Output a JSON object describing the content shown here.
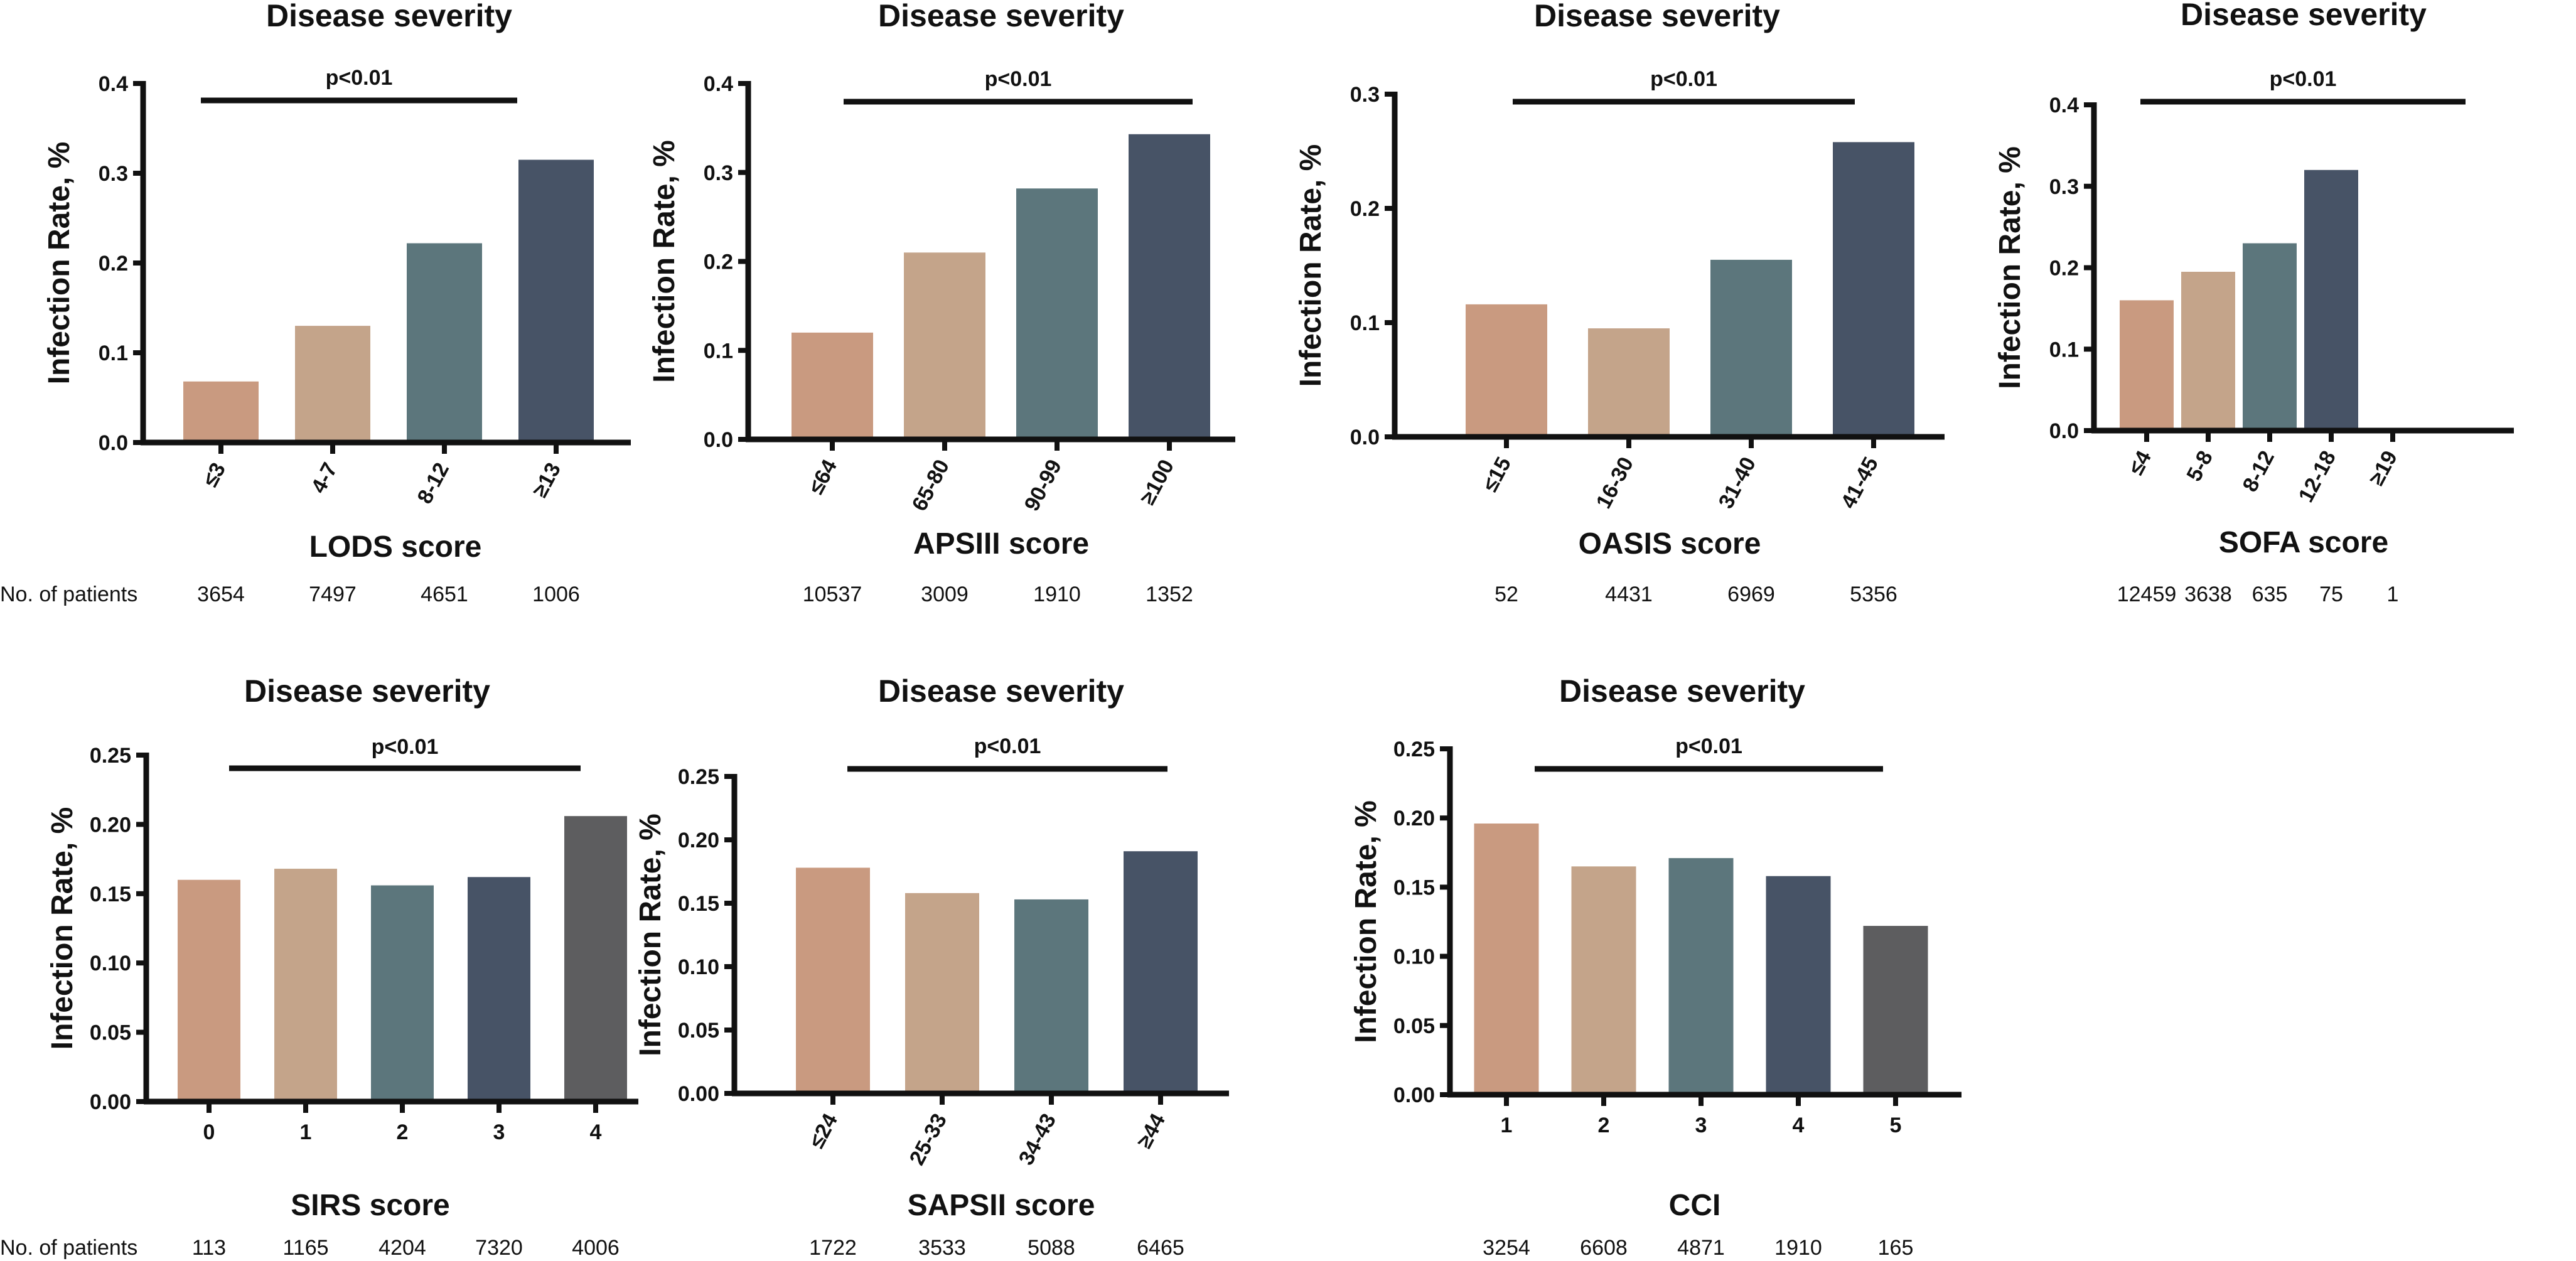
{
  "row_label": "No. of patients",
  "colors": {
    "c1": "#c99a80",
    "c2": "#c4a48a",
    "c3": "#5c767c",
    "c4": "#475366",
    "c5": "#5d5d5f"
  },
  "chart_data": [
    {
      "type": "bar",
      "title": "Disease severity",
      "xlabel": "LODS score",
      "ylabel": "Infection Rate, %",
      "categories": [
        "≤3",
        "4-7",
        "8-12",
        "≥13"
      ],
      "values": [
        0.068,
        0.13,
        0.222,
        0.315
      ],
      "ylim": [
        0,
        0.4
      ],
      "yticks": [
        "0.0",
        "0.1",
        "0.2",
        "0.3",
        "0.4"
      ],
      "significance": "p<0.01",
      "patients": [
        "3654",
        "7497",
        "4651",
        "1006"
      ],
      "show_row_label": true
    },
    {
      "type": "bar",
      "title": "Disease severity",
      "xlabel": "APSIII score",
      "ylabel": "Infection Rate, %",
      "categories": [
        "≤64",
        "65-80",
        "90-99",
        "≥100"
      ],
      "values": [
        0.12,
        0.21,
        0.282,
        0.343
      ],
      "ylim": [
        0,
        0.4
      ],
      "yticks": [
        "0.0",
        "0.1",
        "0.2",
        "0.3",
        "0.4"
      ],
      "significance": "p<0.01",
      "patients": [
        "10537",
        "3009",
        "1910",
        "1352"
      ],
      "show_row_label": false
    },
    {
      "type": "bar",
      "title": "Disease severity",
      "xlabel": "OASIS score",
      "ylabel": "Infection Rate, %",
      "categories": [
        "≤15",
        "16-30",
        "31-40",
        "41-45"
      ],
      "values": [
        0.116,
        0.095,
        0.155,
        0.258
      ],
      "ylim": [
        0,
        0.3
      ],
      "yticks": [
        "0.0",
        "0.1",
        "0.2",
        "0.3"
      ],
      "significance": "p<0.01",
      "patients": [
        "52",
        "4431",
        "6969",
        "5356"
      ],
      "show_row_label": false
    },
    {
      "type": "bar",
      "title": "Disease severity",
      "xlabel": "SOFA score",
      "ylabel": "Infection Rate, %",
      "categories": [
        "≤4",
        "5-8",
        "8-12",
        "12-18",
        "≥19"
      ],
      "values": [
        0.16,
        0.195,
        0.23,
        0.32,
        0
      ],
      "ylim": [
        0,
        0.4
      ],
      "yticks": [
        "0.0",
        "0.1",
        "0.2",
        "0.3",
        "0.4"
      ],
      "significance": "p<0.01",
      "patients": [
        "12459",
        "3638",
        "635",
        "75",
        "1"
      ],
      "show_row_label": false
    },
    {
      "type": "bar",
      "title": "Disease severity",
      "xlabel": "SIRS score",
      "ylabel": "Infection Rate, %",
      "categories": [
        "0",
        "1",
        "2",
        "3",
        "4"
      ],
      "values": [
        0.16,
        0.168,
        0.156,
        0.162,
        0.206
      ],
      "ylim": [
        0,
        0.25
      ],
      "yticks": [
        "0.00",
        "0.05",
        "0.10",
        "0.15",
        "0.20",
        "0.25"
      ],
      "significance": "p<0.01",
      "patients": [
        "113",
        "1165",
        "4204",
        "7320",
        "4006"
      ],
      "show_row_label": true
    },
    {
      "type": "bar",
      "title": "Disease severity",
      "xlabel": "SAPSII score",
      "ylabel": "Infection Rate, %",
      "categories": [
        "≤24",
        "25-33",
        "34-43",
        "≥44"
      ],
      "values": [
        0.178,
        0.158,
        0.153,
        0.191
      ],
      "ylim": [
        0,
        0.25
      ],
      "yticks": [
        "0.00",
        "0.05",
        "0.10",
        "0.15",
        "0.20",
        "0.25"
      ],
      "significance": "p<0.01",
      "patients": [
        "1722",
        "3533",
        "5088",
        "6465"
      ],
      "show_row_label": false
    },
    {
      "type": "bar",
      "title": "Disease severity",
      "xlabel": "CCI",
      "ylabel": "Infection Rate, %",
      "categories": [
        "1",
        "2",
        "3",
        "4",
        "5"
      ],
      "values": [
        0.196,
        0.165,
        0.171,
        0.158,
        0.122
      ],
      "ylim": [
        0,
        0.25
      ],
      "yticks": [
        "0.00",
        "0.05",
        "0.10",
        "0.15",
        "0.20",
        "0.25"
      ],
      "significance": "p<0.01",
      "patients": [
        "3254",
        "6608",
        "4871",
        "1910",
        "165"
      ],
      "show_row_label": false
    }
  ]
}
